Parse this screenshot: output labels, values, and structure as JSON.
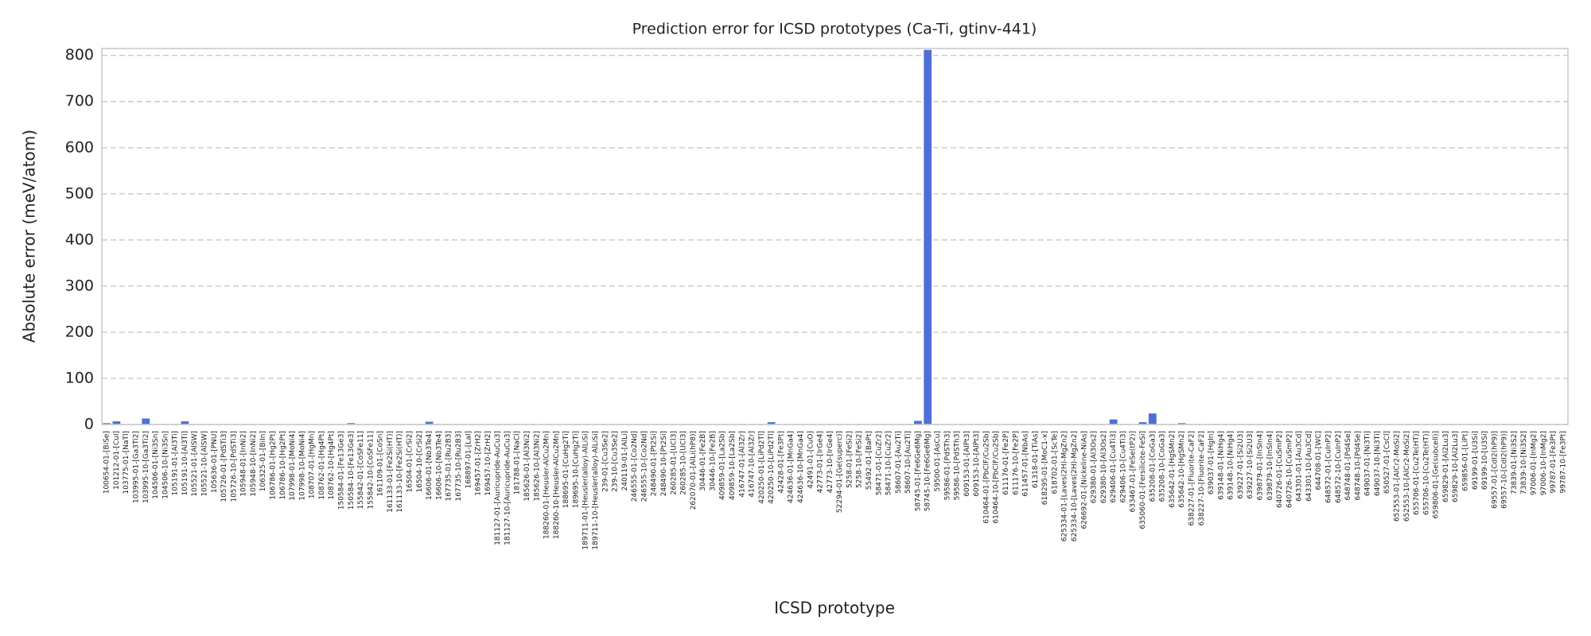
{
  "chart_data": {
    "type": "bar",
    "title": "Prediction error for ICSD prototypes (Ca-Ti, gtinv-441)",
    "x_label": "ICSD prototype",
    "y_label": "Absolute error (meV/atom)",
    "color": "#4f6fd8",
    "grid": true,
    "ylim": [
      0,
      815
    ],
    "yticks": [
      0,
      100,
      200,
      300,
      400,
      500,
      600,
      700,
      800
    ],
    "categories": [
      "100654-01-[BiSe]",
      "101212-01-[CuI]",
      "103775-01-[NaTl]",
      "103995-01-[Ga3Ti2]",
      "103995-10-[Ga3Ti2]",
      "104506-01-[Ni3Sn]",
      "104506-10-[Ni3Sn]",
      "105191-01-[Al3Ti]",
      "105191-10-[Al3Ti]",
      "105521-01-[AlSW]",
      "105521-10-[AlSW]",
      "105636-01-[PNU]",
      "105726-01-[PdSTi3]",
      "105726-10-[PdSTi3]",
      "105948-01-[InNi2]",
      "105948-10-[InNi2]",
      "106325-01-[BiIn]",
      "106786-01-[Hg2Pt]",
      "106786-10-[Hg2Pt]",
      "107998-01-[MoNi4]",
      "107998-10-[MoNi4]",
      "108707-01-[HgMn]",
      "108762-01-[Hg4Pt]",
      "108762-10-[Hg4Pt]",
      "150584-01-[Fe13Ge3]",
      "150584-10-[Fe13Ge3]",
      "155842-01-[CoSFe11]",
      "155842-10-[CoSFe11]",
      "161109-01-[CoSn]",
      "161133-01-[Fe2Si(HT)]",
      "161133-10-[Fe2Si(HT)]",
      "16504-01-[CrSi2]",
      "16504-10-[CrSi2]",
      "16606-01-[Nb3Te4]",
      "16606-10-[Nb3Te4]",
      "167735-01-[Ru2B3]",
      "167735-10-[Ru2B3]",
      "168897-01-[LaI]",
      "169457-01-[ZrH2]",
      "169457-10-[ZrH2]",
      "181127-01-[Auricupride-AuCu3]",
      "181127-10-[Auricupride-AuCu3]",
      "181788-01-[NaCl]",
      "185626-01-[Al3Ni2]",
      "185626-10-[Al3Ni2]",
      "188260-01-[Heusler-AlCu2Mn]",
      "188260-10-[Heusler-AlCu2Mn]",
      "188695-01-[CuHg2Ti]",
      "189695-10-[CuHg2Ti]",
      "189711-01-[Heusler(alloy)-AlLiSi]",
      "189711-10-[Heusler(alloy)-AlLiSi]",
      "239-01-[Cu3Se2]",
      "239-10-[Cu3Se2]",
      "240119-01-[AlLi]",
      "246555-01-[Co2Nd]",
      "246555-10-[Co2Nd]",
      "248490-01-[Pt2Si]",
      "248490-10-[Pt2Si]",
      "260285-01-[UCl3]",
      "260285-10-[UCl3]",
      "262070-01-[AlLi(hP8)]",
      "30446-01-[Fe2B]",
      "30446-10-[Fe2B]",
      "409859-01-[La2Sb]",
      "409859-10-[La2Sb]",
      "416747-01-[Al3Zr]",
      "416747-10-[Al3Zr]",
      "420250-01-[LiPd2Tl]",
      "420250-10-[LiPd2Tl]",
      "42428-01-[Fe3Pt]",
      "424636-01-[MnGa4]",
      "424636-10-[MnGa4]",
      "42491-01-[CuO]",
      "42773-01-[IrGe4]",
      "42773-10-[IrGe4]",
      "52294-01-[Ge(superc)]",
      "5258-01-[FeSi2]",
      "5258-10-[FeSi2]",
      "55492-01-[BaPt]",
      "58471-01-[CuZr2]",
      "58471-10-[CuZr2]",
      "58607-01-[Au2Ti]",
      "58607-10-[Au2Ti]",
      "58745-01-[Fe6Ge6Mg]",
      "58745-10-[Fe6Ge6Mg]",
      "59500-01-[AsCu]",
      "59586-01-[PdSTh3]",
      "59586-10-[PdSTh3]",
      "609153-01-[AlPt3]",
      "609153-10-[AlPt3]",
      "610464-01-[PbClF/Cu2Sb]",
      "610464-10-[PbClF/Cu2Sb]",
      "611176-01-[Fe2P]",
      "611176-10-[Fe2P]",
      "611457-01-[NbAs]",
      "61318-01-[TiAs]",
      "618295-01-[MoC1-x]",
      "618702-01-[ScTe]",
      "625334-01-[Laves(2H)-MgZn2]",
      "625334-10-[Laves(2H)-MgZn2]",
      "626692-01-[Nickeline-NiAs]",
      "629380-01-[Al3Os2]",
      "629380-10-[Al3Os2]",
      "629406-01-[Cu4Ti3]",
      "629406-10-[Cu4Ti3]",
      "633467-01-[FeSe(tP2)]",
      "635060-01-[Fersilicite-FeSi]",
      "635208-01-[CoGa3]",
      "635208-10-[CoGa3]",
      "635642-01-[HgSMn2]",
      "635642-10-[HgSMn2]",
      "638227-01-[Fluorite-CaF2]",
      "638227-10-[Fluorite-CaF2]",
      "639037-01-[HgIn]",
      "639148-01-[NiHg4]",
      "639148-10-[NiHg4]",
      "639227-01-[Si2U3]",
      "639227-10-[Si2U3]",
      "639879-01-[InSIn4]",
      "639879-10-[InSIn4]",
      "640726-01-[CuSmP2]",
      "640726-10-[CuSmP2]",
      "643301-01-[Au3Cd]",
      "643301-10-[Au3Cd]",
      "644708-01-[WC]",
      "648572-01-[CuInP2]",
      "648572-10-[CuInP2]",
      "648748-01-[Pd4Se]",
      "648748-10-[Pd4Se]",
      "649037-01-[Ni3Ti]",
      "649037-10-[Ni3Ti]",
      "650527-01-[CsCl]",
      "652553-01-[AlCr2-MoSi2]",
      "652553-10-[AlCr2-MoSi2]",
      "655706-01-[Cu2Te(HT)]",
      "655706-10-[Cu2Te(HT)]",
      "659806-01-[Ge(subcell)]",
      "659829-01-[Al2Lu3]",
      "659829-10-[Al2Lu3]",
      "659856-01-[LiPt]",
      "69199-01-[U3Si]",
      "69199-10-[U3Si]",
      "69557-01-[CdI2(hP9)]",
      "69557-10-[CdI2(hP9)]",
      "73839-01-[Ni3S2]",
      "73839-10-[Ni3S2]",
      "97006-01-[InMg2]",
      "97006-10-[InMg2]",
      "99787-01-[Fe3Pt]",
      "99787-10-[Fe3Pt]"
    ],
    "values": [
      3,
      7,
      1,
      1,
      13,
      1,
      1,
      1,
      7,
      1,
      1,
      1,
      1,
      1,
      1,
      1,
      1,
      1,
      1,
      1,
      1,
      1,
      1,
      1,
      1,
      3,
      1,
      1,
      1,
      1,
      1,
      1,
      1,
      6,
      1,
      1,
      1,
      1,
      1,
      1,
      1,
      1,
      1,
      1,
      1,
      1,
      1,
      1,
      1,
      1,
      1,
      1,
      1,
      1,
      1,
      1,
      1,
      1,
      1,
      1,
      1,
      1,
      1,
      1,
      1,
      1,
      1,
      1,
      5,
      1,
      1,
      1,
      1,
      1,
      1,
      1,
      1,
      1,
      1,
      1,
      1,
      1,
      1,
      8,
      812,
      1,
      1,
      1,
      1,
      1,
      1,
      1,
      1,
      1,
      1,
      1,
      1,
      1,
      1,
      1,
      1,
      1,
      1,
      11,
      1,
      1,
      5,
      24,
      1,
      1,
      3,
      1,
      1,
      1,
      1,
      1,
      1,
      1,
      1,
      1,
      1,
      1,
      1,
      1,
      1,
      1,
      1,
      1,
      1,
      1,
      1,
      1,
      1,
      1,
      1,
      1,
      1,
      1,
      1,
      1,
      1,
      1,
      1,
      1,
      1,
      1,
      1,
      1,
      1,
      1
    ]
  }
}
